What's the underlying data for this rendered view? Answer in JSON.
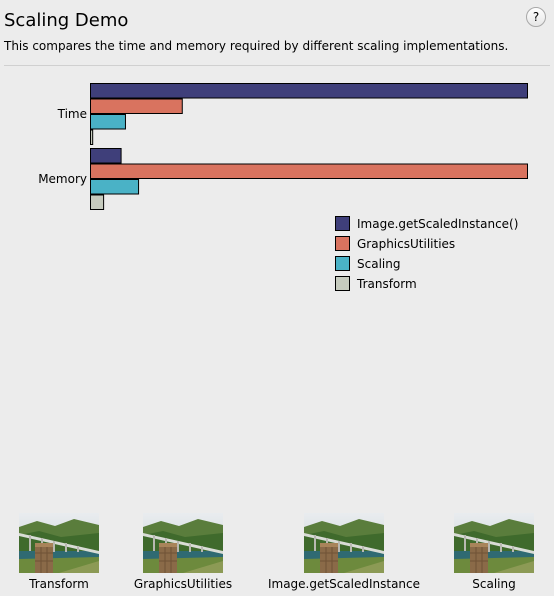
{
  "window": {
    "title": "Scaling Demo",
    "subtitle": "This compares the time and memory required by different scaling implementations.",
    "help_label": "?"
  },
  "chart_data": {
    "type": "bar",
    "orientation": "horizontal",
    "categories": [
      "Time",
      "Memory"
    ],
    "series": [
      {
        "name": "Image.getScaledInstance()",
        "color": "#3f3f7a",
        "values": [
          100,
          7
        ]
      },
      {
        "name": "GraphicsUtilities",
        "color": "#d9735f",
        "values": [
          21,
          100
        ]
      },
      {
        "name": "Scaling",
        "color": "#4ab2c6",
        "values": [
          8,
          11
        ]
      },
      {
        "name": "Transform",
        "color": "#c6cbbe",
        "values": [
          0.5,
          3
        ]
      }
    ],
    "xlim": [
      0,
      100
    ],
    "legend": "right",
    "grid": false
  },
  "thumbnails": [
    {
      "label": "Transform"
    },
    {
      "label": "GraphicsUtilities"
    },
    {
      "label": "Image.getScaledInstance"
    },
    {
      "label": "Scaling"
    }
  ]
}
